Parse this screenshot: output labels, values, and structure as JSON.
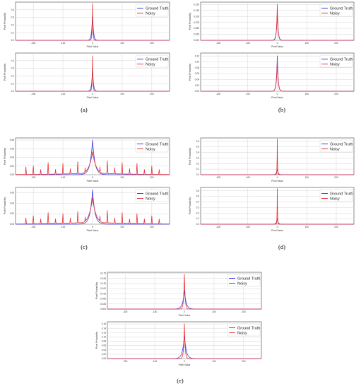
{
  "captions": [
    "(a)",
    "(b)",
    "(c)",
    "(d)",
    "(e)"
  ],
  "chart_data": [
    {
      "panel": "a",
      "position": "top",
      "type": "line",
      "xlabel": "Pixel Value",
      "ylabel": "Pixel Probability",
      "xticks": [
        "-200",
        "-100",
        "0",
        "100",
        "200"
      ],
      "yticks": [
        "0.0",
        "0.1",
        "0.2",
        "0.3",
        "0.4"
      ],
      "xlim": [
        -260,
        260
      ],
      "ylim": [
        0,
        0.5
      ],
      "grid": true,
      "legend": "top-right",
      "series": [
        {
          "name": "Ground Truth",
          "color": "#3a3af0",
          "peak": 0.36,
          "width": 3.0
        },
        {
          "name": "Noisy",
          "color": "#e83030",
          "peak": 0.48,
          "width": 1.5
        }
      ]
    },
    {
      "panel": "a",
      "position": "bottom",
      "type": "line",
      "xlabel": "Pixel Value",
      "ylabel": "Pixel Probability",
      "xticks": [
        "-200",
        "-100",
        "0",
        "100",
        "200"
      ],
      "yticks": [
        "0.0",
        "0.1",
        "0.2",
        "0.3",
        "0.4"
      ],
      "xlim": [
        -260,
        260
      ],
      "ylim": [
        0,
        0.5
      ],
      "grid": true,
      "legend": "top-right",
      "series": [
        {
          "name": "Ground Truth",
          "color": "#3a3af0",
          "peak": 0.3,
          "width": 3.0
        },
        {
          "name": "Noisy",
          "color": "#e83030",
          "peak": 0.46,
          "width": 1.5
        }
      ]
    },
    {
      "panel": "b",
      "position": "top",
      "type": "line",
      "xlabel": "Pixel Value",
      "ylabel": "Pixel Probability",
      "xticks": [
        "-200",
        "-100",
        "0",
        "100",
        "200"
      ],
      "yticks": [
        "0.000",
        "0.025",
        "0.050",
        "0.075",
        "0.100",
        "0.125",
        "0.150"
      ],
      "xlim": [
        -260,
        260
      ],
      "ylim": [
        0,
        0.16
      ],
      "grid": true,
      "legend": "top-right",
      "series": [
        {
          "name": "Ground Truth",
          "color": "#3a3af0",
          "peak": 0.12,
          "width": 3.0
        },
        {
          "name": "Noisy",
          "color": "#e83030",
          "peak": 0.15,
          "width": 2.5
        }
      ]
    },
    {
      "panel": "b",
      "position": "bottom",
      "type": "line",
      "xlabel": "Pixel Value",
      "ylabel": "Pixel Probability",
      "xticks": [
        "-200",
        "-100",
        "0",
        "100",
        "200"
      ],
      "yticks": [
        "0.00",
        "0.02",
        "0.04",
        "0.06",
        "0.08",
        "0.10",
        "0.12"
      ],
      "xlim": [
        -260,
        260
      ],
      "ylim": [
        0,
        0.13
      ],
      "grid": true,
      "legend": "top-right",
      "series": [
        {
          "name": "Ground Truth",
          "color": "#3a3af0",
          "peak": 0.12,
          "width": 3.0
        },
        {
          "name": "Noisy",
          "color": "#e83030",
          "peak": 0.105,
          "width": 3.0
        }
      ]
    },
    {
      "panel": "c",
      "position": "top",
      "type": "line",
      "xlabel": "Pixel Value",
      "ylabel": "Pixel Probability",
      "xticks": [
        "-200",
        "-100",
        "0",
        "100",
        "200"
      ],
      "yticks": [
        "0.00",
        "0.02",
        "0.04",
        "0.06",
        "0.08"
      ],
      "xlim": [
        -260,
        260
      ],
      "ylim": [
        0,
        0.085
      ],
      "grid": true,
      "legend": "top-right",
      "series": [
        {
          "name": "Ground Truth",
          "color": "#3a3af0",
          "peak": 0.08,
          "width": 8.0
        },
        {
          "name": "Noisy",
          "color": "#e83030",
          "peak": 0.053,
          "width": 12.0,
          "spikes_x": [
            -225,
            -200,
            -175,
            -150,
            -125,
            -100,
            -75,
            -50,
            -25,
            25,
            50,
            75,
            100,
            125,
            150,
            175,
            200,
            225
          ],
          "spikes_y": [
            0.018,
            0.02,
            0.012,
            0.028,
            0.012,
            0.026,
            0.014,
            0.03,
            0.016,
            0.018,
            0.032,
            0.016,
            0.028,
            0.014,
            0.026,
            0.012,
            0.02,
            0.012
          ]
        }
      ]
    },
    {
      "panel": "c",
      "position": "bottom",
      "type": "line",
      "xlabel": "Pixel Value",
      "ylabel": "Pixel Probability",
      "xticks": [
        "-200",
        "-100",
        "0",
        "100",
        "200"
      ],
      "yticks": [
        "0.00",
        "0.02",
        "0.04",
        "0.06"
      ],
      "xlim": [
        -260,
        260
      ],
      "ylim": [
        0,
        0.07
      ],
      "grid": true,
      "legend": "top-right",
      "series": [
        {
          "name": "Ground Truth",
          "color": "#3a3af0",
          "peak": 0.065,
          "width": 8.0
        },
        {
          "name": "Noisy",
          "color": "#e83030",
          "peak": 0.05,
          "width": 12.0,
          "spikes_x": [
            -225,
            -200,
            -175,
            -150,
            -125,
            -100,
            -75,
            -50,
            -25,
            25,
            50,
            75,
            100,
            125,
            150,
            175,
            200,
            225
          ],
          "spikes_y": [
            0.012,
            0.016,
            0.01,
            0.022,
            0.01,
            0.02,
            0.012,
            0.024,
            0.014,
            0.016,
            0.026,
            0.012,
            0.022,
            0.01,
            0.02,
            0.01,
            0.016,
            0.01
          ]
        }
      ]
    },
    {
      "panel": "d",
      "position": "top",
      "type": "line",
      "xlabel": "Pixel Value",
      "ylabel": "Pixel Probability",
      "xticks": [
        "-200",
        "-100",
        "0",
        "100",
        "200"
      ],
      "yticks": [
        "0.0",
        "0.1",
        "0.2",
        "0.3",
        "0.4",
        "0.5",
        "0.6"
      ],
      "xlim": [
        -260,
        260
      ],
      "ylim": [
        0,
        0.66
      ],
      "grid": true,
      "legend": "top-right",
      "series": [
        {
          "name": "Ground Truth",
          "color": "#3a3af0",
          "peak": 0.1,
          "width": 3.0
        },
        {
          "name": "Noisy",
          "color": "#e83030",
          "peak": 0.64,
          "width": 0.8
        }
      ]
    },
    {
      "panel": "d",
      "position": "bottom",
      "type": "line",
      "xlabel": "Pixel Value",
      "ylabel": "Pixel Probability",
      "xticks": [
        "-200",
        "-100",
        "0",
        "100",
        "200"
      ],
      "yticks": [
        "0.0",
        "0.1",
        "0.2",
        "0.3",
        "0.4",
        "0.5",
        "0.6"
      ],
      "xlim": [
        -260,
        260
      ],
      "ylim": [
        0,
        0.66
      ],
      "grid": true,
      "legend": "top-right",
      "series": [
        {
          "name": "Ground Truth",
          "color": "#3a3af0",
          "peak": 0.1,
          "width": 3.0
        },
        {
          "name": "Noisy",
          "color": "#e83030",
          "peak": 0.64,
          "width": 0.8
        }
      ]
    },
    {
      "panel": "e",
      "position": "top",
      "type": "line",
      "xlabel": "Pixel Value",
      "ylabel": "Pixel Probability",
      "xticks": [
        "-200",
        "-100",
        "0",
        "100",
        "200"
      ],
      "yticks": [
        "0.000",
        "0.025",
        "0.050",
        "0.075",
        "0.100",
        "0.125",
        "0.150",
        "0.175"
      ],
      "xlim": [
        -260,
        260
      ],
      "ylim": [
        0,
        0.18
      ],
      "grid": true,
      "legend": "top-right",
      "series": [
        {
          "name": "Ground Truth",
          "color": "#3a3af0",
          "peak": 0.09,
          "width": 6.0
        },
        {
          "name": "Noisy",
          "color": "#e83030",
          "peak": 0.17,
          "width": 2.5
        }
      ]
    },
    {
      "panel": "e",
      "position": "bottom",
      "type": "line",
      "xlabel": "Pixel Value",
      "ylabel": "Pixel Probability",
      "xticks": [
        "-200",
        "-100",
        "0",
        "100",
        "200"
      ],
      "yticks": [
        "0.00",
        "0.02",
        "0.04",
        "0.06",
        "0.08",
        "0.10",
        "0.12",
        "0.14",
        "0.16"
      ],
      "xlim": [
        -260,
        260
      ],
      "ylim": [
        0,
        0.17
      ],
      "grid": true,
      "legend": "top-right",
      "series": [
        {
          "name": "Ground Truth",
          "color": "#3a3af0",
          "peak": 0.11,
          "width": 6.0
        },
        {
          "name": "Noisy",
          "color": "#e83030",
          "peak": 0.16,
          "width": 2.5
        }
      ]
    }
  ]
}
